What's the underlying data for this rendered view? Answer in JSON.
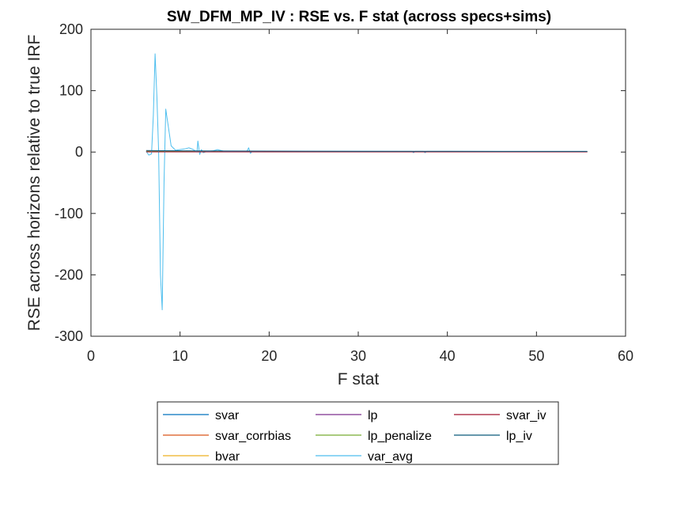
{
  "chart_data": {
    "type": "line",
    "title": "SW_DFM_MP_IV : RSE vs. F stat (across specs+sims)",
    "xlabel": "F stat",
    "ylabel": "RSE across horizons relative to true IRF",
    "xlim": [
      0,
      60
    ],
    "ylim": [
      -300,
      200
    ],
    "x_ticks": [
      "0",
      "10",
      "20",
      "30",
      "40",
      "50",
      "60"
    ],
    "y_ticks": [
      "200",
      "100",
      "0",
      "-100",
      "-200",
      "-300"
    ],
    "grid": false,
    "legend_position": "below plot",
    "series": [
      {
        "name": "svar",
        "color": "#0072BD",
        "points": [
          [
            6.2,
            2.0
          ],
          [
            8,
            1.8
          ],
          [
            12,
            1.5
          ],
          [
            20,
            1.2
          ],
          [
            30,
            1.0
          ],
          [
            40,
            0.9
          ],
          [
            55.7,
            0.8
          ]
        ]
      },
      {
        "name": "svar_corrbias",
        "color": "#D95319",
        "points": [
          [
            6.2,
            1.5
          ],
          [
            8,
            1.3
          ],
          [
            12,
            1.1
          ],
          [
            20,
            0.9
          ],
          [
            30,
            0.8
          ],
          [
            40,
            0.7
          ],
          [
            55.7,
            0.6
          ]
        ]
      },
      {
        "name": "bvar",
        "color": "#EDB120",
        "points": [
          [
            6.2,
            1.2
          ],
          [
            8,
            1.1
          ],
          [
            12,
            1.0
          ],
          [
            20,
            0.9
          ],
          [
            30,
            0.8
          ],
          [
            40,
            0.7
          ],
          [
            55.7,
            0.6
          ]
        ]
      },
      {
        "name": "lp",
        "color": "#7E2F8E",
        "points": [
          [
            6.2,
            0.5
          ],
          [
            8,
            0.5
          ],
          [
            12,
            0.4
          ],
          [
            20,
            0.4
          ],
          [
            30,
            0.4
          ],
          [
            40,
            0.3
          ],
          [
            55.7,
            0.3
          ]
        ]
      },
      {
        "name": "lp_penalize",
        "color": "#77AC30",
        "points": [
          [
            6.2,
            0.8
          ],
          [
            8,
            0.8
          ],
          [
            12,
            0.7
          ],
          [
            20,
            0.6
          ],
          [
            30,
            0.5
          ],
          [
            40,
            0.5
          ],
          [
            55.7,
            0.4
          ]
        ]
      },
      {
        "name": "var_avg",
        "color": "#4DBEEE",
        "points": [
          [
            6.2,
            1
          ],
          [
            6.5,
            -5
          ],
          [
            6.8,
            -3
          ],
          [
            7.0,
            60
          ],
          [
            7.2,
            160
          ],
          [
            7.4,
            90
          ],
          [
            7.6,
            0
          ],
          [
            7.8,
            -200
          ],
          [
            8.0,
            -257
          ],
          [
            8.2,
            -50
          ],
          [
            8.4,
            70
          ],
          [
            8.7,
            40
          ],
          [
            9.0,
            10
          ],
          [
            9.5,
            3
          ],
          [
            10.5,
            5
          ],
          [
            11,
            7
          ],
          [
            11.5,
            4
          ],
          [
            11.9,
            0
          ],
          [
            12.0,
            18
          ],
          [
            12.2,
            -4
          ],
          [
            12.4,
            4
          ],
          [
            12.6,
            -1
          ],
          [
            13,
            1
          ],
          [
            13.7,
            2
          ],
          [
            14.2,
            4
          ],
          [
            15,
            1
          ],
          [
            17.5,
            1
          ],
          [
            17.7,
            7
          ],
          [
            17.9,
            -2
          ],
          [
            18.1,
            1
          ],
          [
            25,
            1
          ],
          [
            36.0,
            1
          ],
          [
            36.2,
            -1
          ],
          [
            36.4,
            1
          ],
          [
            37.3,
            1
          ],
          [
            37.5,
            -1
          ],
          [
            37.7,
            1
          ],
          [
            45,
            1
          ],
          [
            55.7,
            1
          ]
        ]
      },
      {
        "name": "svar_iv",
        "color": "#A2142F",
        "points": [
          [
            6.2,
            0.3
          ],
          [
            12,
            0.3
          ],
          [
            20,
            0.3
          ],
          [
            30,
            0.2
          ],
          [
            40,
            0.2
          ],
          [
            55.7,
            0.2
          ]
        ]
      },
      {
        "name": "lp_iv",
        "color": "#0B5A7A",
        "points": [
          [
            6.2,
            2.5
          ],
          [
            8,
            2.2
          ],
          [
            12,
            1.8
          ],
          [
            20,
            1.5
          ],
          [
            30,
            1.3
          ],
          [
            40,
            1.1
          ],
          [
            55.7,
            1.0
          ]
        ]
      }
    ],
    "legend_layout": [
      [
        "svar",
        "lp",
        "svar_iv"
      ],
      [
        "svar_corrbias",
        "lp_penalize",
        "lp_iv"
      ],
      [
        "bvar",
        "var_avg"
      ]
    ]
  }
}
